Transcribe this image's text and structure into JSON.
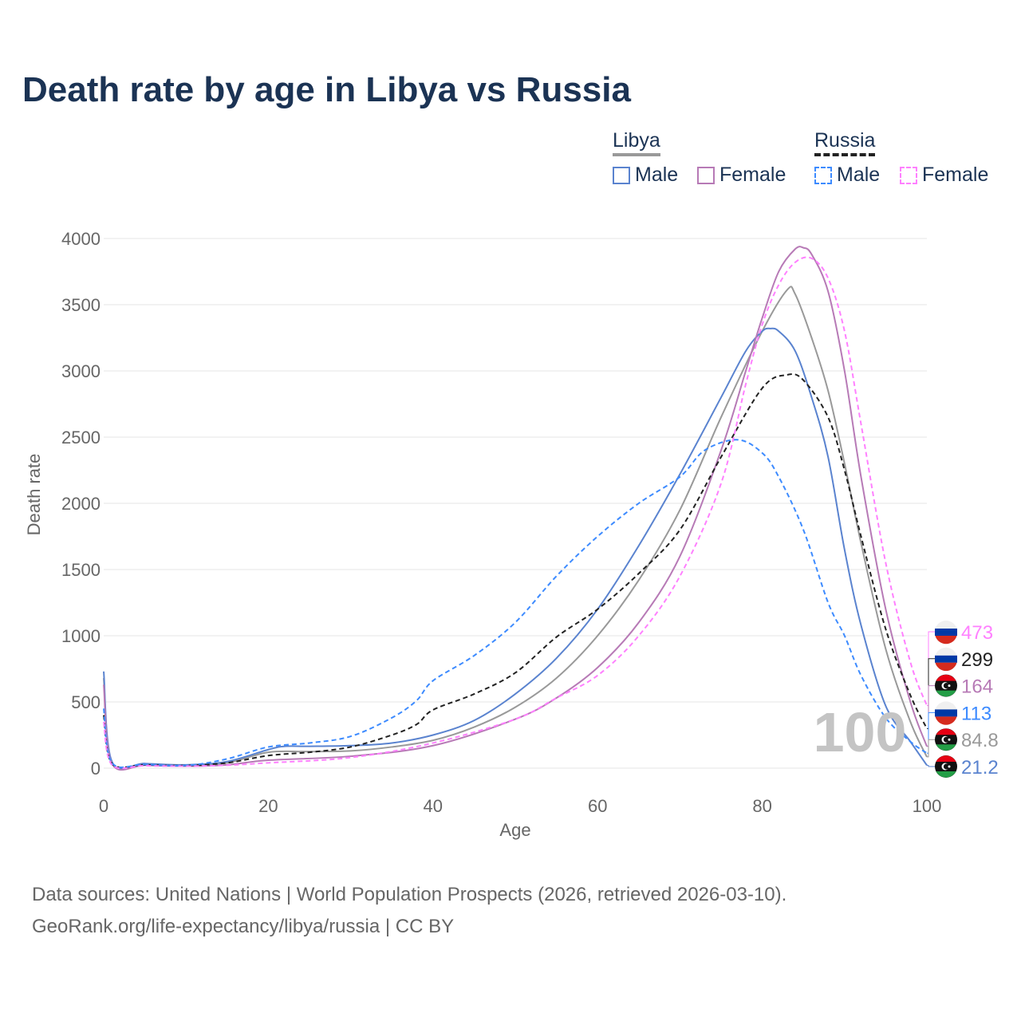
{
  "title": "Death rate by age in Libya vs Russia",
  "legend": {
    "groups": [
      {
        "name": "Libya",
        "style": "solid",
        "color": "#999999"
      },
      {
        "name": "Russia",
        "style": "dashed",
        "color": "#222222"
      }
    ],
    "items": [
      {
        "label": "Male",
        "group": "Libya",
        "color": "#5a83cf",
        "dashed": false
      },
      {
        "label": "Female",
        "group": "Libya",
        "color": "#b77ab6",
        "dashed": false
      },
      {
        "label": "Male",
        "group": "Russia",
        "color": "#3d8bff",
        "dashed": true
      },
      {
        "label": "Female",
        "group": "Russia",
        "color": "#ff80ff",
        "dashed": true
      }
    ]
  },
  "watermark": "100",
  "footer": {
    "line1": "Data sources: United Nations | World Population Prospects (2026, retrieved 2026-03-10).",
    "line2": "GeoRank.org/life-expectancy/libya/russia | CC BY"
  },
  "chart_data": {
    "type": "line",
    "title": "Death rate by age in Libya vs Russia",
    "xlabel": "Age",
    "ylabel": "Death rate",
    "xlim": [
      0,
      100
    ],
    "ylim": [
      0,
      4000
    ],
    "xticks": [
      0,
      20,
      40,
      60,
      80,
      100
    ],
    "yticks": [
      0,
      500,
      1000,
      1500,
      2000,
      2500,
      3000,
      3500,
      4000
    ],
    "grid": true,
    "series": [
      {
        "name": "Libya",
        "color": "#999999",
        "dashed": false,
        "end_label": "84.8",
        "flag": "libya",
        "x": [
          0,
          1,
          5,
          10,
          15,
          20,
          25,
          30,
          35,
          40,
          45,
          50,
          55,
          60,
          65,
          70,
          75,
          80,
          83,
          84,
          86,
          88,
          90,
          92,
          95,
          98,
          100
        ],
        "y": [
          680,
          45,
          30,
          22,
          40,
          120,
          125,
          130,
          160,
          210,
          310,
          460,
          680,
          1000,
          1420,
          1950,
          2650,
          3300,
          3610,
          3580,
          3250,
          2850,
          2300,
          1700,
          900,
          350,
          84.8
        ]
      },
      {
        "name": "Libya Male",
        "color": "#5a83cf",
        "dashed": false,
        "end_label": "21.2",
        "flag": "libya",
        "x": [
          0,
          1,
          5,
          10,
          15,
          20,
          22,
          25,
          30,
          35,
          40,
          45,
          50,
          55,
          60,
          65,
          70,
          75,
          78,
          80,
          81,
          82,
          84,
          86,
          88,
          90,
          92,
          95,
          98,
          100
        ],
        "y": [
          730,
          50,
          35,
          25,
          50,
          140,
          165,
          165,
          170,
          190,
          250,
          360,
          560,
          830,
          1200,
          1680,
          2220,
          2800,
          3150,
          3300,
          3320,
          3300,
          3150,
          2800,
          2350,
          1650,
          1080,
          470,
          200,
          21.2
        ]
      },
      {
        "name": "Libya Female",
        "color": "#b77ab6",
        "dashed": false,
        "end_label": "164",
        "flag": "libya",
        "x": [
          0,
          1,
          5,
          10,
          15,
          20,
          30,
          40,
          50,
          55,
          60,
          65,
          70,
          75,
          78,
          80,
          82,
          84,
          85,
          86,
          88,
          90,
          92,
          95,
          98,
          100
        ],
        "y": [
          630,
          35,
          22,
          15,
          25,
          60,
          90,
          170,
          370,
          530,
          760,
          1100,
          1600,
          2400,
          3000,
          3400,
          3750,
          3920,
          3930,
          3880,
          3600,
          3000,
          2200,
          1200,
          500,
          164
        ]
      },
      {
        "name": "Russia",
        "color": "#222222",
        "dashed": true,
        "end_label": "299",
        "flag": "russia",
        "x": [
          0,
          1,
          5,
          10,
          15,
          20,
          25,
          30,
          35,
          38,
          40,
          45,
          50,
          55,
          60,
          65,
          70,
          75,
          80,
          83,
          85,
          88,
          90,
          92,
          95,
          98,
          100
        ],
        "y": [
          400,
          35,
          25,
          20,
          40,
          95,
          120,
          160,
          250,
          330,
          440,
          560,
          720,
          990,
          1200,
          1470,
          1800,
          2350,
          2870,
          2970,
          2930,
          2650,
          2250,
          1750,
          1050,
          550,
          299
        ]
      },
      {
        "name": "Russia Male",
        "color": "#3d8bff",
        "dashed": true,
        "end_label": "113",
        "flag": "russia",
        "x": [
          0,
          1,
          5,
          10,
          15,
          20,
          25,
          30,
          35,
          38,
          40,
          45,
          50,
          55,
          60,
          65,
          70,
          73,
          77,
          80,
          82,
          85,
          88,
          90,
          92,
          95,
          98,
          100
        ],
        "y": [
          450,
          40,
          28,
          20,
          70,
          160,
          190,
          240,
          380,
          510,
          660,
          850,
          1100,
          1450,
          1750,
          2000,
          2200,
          2400,
          2480,
          2380,
          2200,
          1800,
          1250,
          1000,
          700,
          380,
          200,
          113
        ]
      },
      {
        "name": "Russia Female",
        "color": "#ff80ff",
        "dashed": true,
        "end_label": "473",
        "flag": "russia",
        "x": [
          0,
          1,
          5,
          10,
          15,
          20,
          30,
          40,
          50,
          55,
          60,
          65,
          70,
          75,
          78,
          80,
          82,
          84,
          86,
          88,
          90,
          92,
          95,
          98,
          100
        ],
        "y": [
          350,
          25,
          18,
          15,
          22,
          40,
          80,
          190,
          370,
          530,
          700,
          1000,
          1450,
          2150,
          2900,
          3350,
          3650,
          3820,
          3850,
          3700,
          3300,
          2600,
          1550,
          800,
          473
        ]
      }
    ]
  }
}
